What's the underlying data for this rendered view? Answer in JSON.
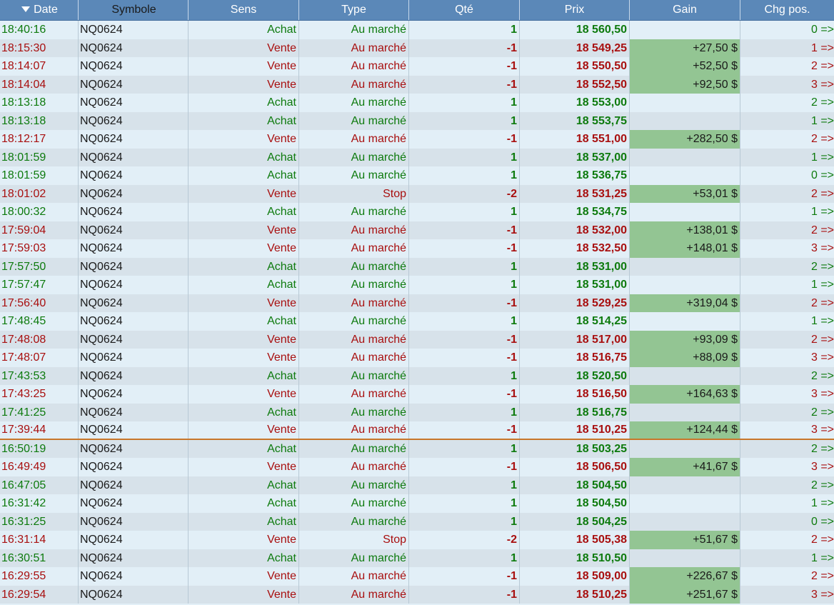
{
  "columns": {
    "date": "Date",
    "symbole": "Symbole",
    "sens": "Sens",
    "type": "Type",
    "qte": "Qté",
    "prix": "Prix",
    "gain": "Gain",
    "chg": "Chg pos."
  },
  "colors": {
    "buy": "#0d7a0d",
    "sell": "#a80f0f",
    "gain_bg": "#93c593",
    "header": "#5b88b8",
    "separator": "#c8762a"
  },
  "rows": [
    {
      "date": "18:40:16",
      "symbol": "NQ0624",
      "sens": "Achat",
      "type": "Au marché",
      "qte": "1",
      "prix": "18 560,50",
      "gain": "",
      "chg": "0 =>"
    },
    {
      "date": "18:15:30",
      "symbol": "NQ0624",
      "sens": "Vente",
      "type": "Au marché",
      "qte": "-1",
      "prix": "18 549,25",
      "gain": "+27,50 $",
      "chg": "1 =>"
    },
    {
      "date": "18:14:07",
      "symbol": "NQ0624",
      "sens": "Vente",
      "type": "Au marché",
      "qte": "-1",
      "prix": "18 550,50",
      "gain": "+52,50 $",
      "chg": "2 =>"
    },
    {
      "date": "18:14:04",
      "symbol": "NQ0624",
      "sens": "Vente",
      "type": "Au marché",
      "qte": "-1",
      "prix": "18 552,50",
      "gain": "+92,50 $",
      "chg": "3 =>"
    },
    {
      "date": "18:13:18",
      "symbol": "NQ0624",
      "sens": "Achat",
      "type": "Au marché",
      "qte": "1",
      "prix": "18 553,00",
      "gain": "",
      "chg": "2 =>"
    },
    {
      "date": "18:13:18",
      "symbol": "NQ0624",
      "sens": "Achat",
      "type": "Au marché",
      "qte": "1",
      "prix": "18 553,75",
      "gain": "",
      "chg": "1 =>"
    },
    {
      "date": "18:12:17",
      "symbol": "NQ0624",
      "sens": "Vente",
      "type": "Au marché",
      "qte": "-1",
      "prix": "18 551,00",
      "gain": "+282,50 $",
      "chg": "2 =>"
    },
    {
      "date": "18:01:59",
      "symbol": "NQ0624",
      "sens": "Achat",
      "type": "Au marché",
      "qte": "1",
      "prix": "18 537,00",
      "gain": "",
      "chg": "1 =>"
    },
    {
      "date": "18:01:59",
      "symbol": "NQ0624",
      "sens": "Achat",
      "type": "Au marché",
      "qte": "1",
      "prix": "18 536,75",
      "gain": "",
      "chg": "0 =>"
    },
    {
      "date": "18:01:02",
      "symbol": "NQ0624",
      "sens": "Vente",
      "type": "Stop",
      "qte": "-2",
      "prix": "18 531,25",
      "gain": "+53,01 $",
      "chg": "2 =>"
    },
    {
      "date": "18:00:32",
      "symbol": "NQ0624",
      "sens": "Achat",
      "type": "Au marché",
      "qte": "1",
      "prix": "18 534,75",
      "gain": "",
      "chg": "1 =>"
    },
    {
      "date": "17:59:04",
      "symbol": "NQ0624",
      "sens": "Vente",
      "type": "Au marché",
      "qte": "-1",
      "prix": "18 532,00",
      "gain": "+138,01 $",
      "chg": "2 =>"
    },
    {
      "date": "17:59:03",
      "symbol": "NQ0624",
      "sens": "Vente",
      "type": "Au marché",
      "qte": "-1",
      "prix": "18 532,50",
      "gain": "+148,01 $",
      "chg": "3 =>"
    },
    {
      "date": "17:57:50",
      "symbol": "NQ0624",
      "sens": "Achat",
      "type": "Au marché",
      "qte": "1",
      "prix": "18 531,00",
      "gain": "",
      "chg": "2 =>"
    },
    {
      "date": "17:57:47",
      "symbol": "NQ0624",
      "sens": "Achat",
      "type": "Au marché",
      "qte": "1",
      "prix": "18 531,00",
      "gain": "",
      "chg": "1 =>"
    },
    {
      "date": "17:56:40",
      "symbol": "NQ0624",
      "sens": "Vente",
      "type": "Au marché",
      "qte": "-1",
      "prix": "18 529,25",
      "gain": "+319,04 $",
      "chg": "2 =>"
    },
    {
      "date": "17:48:45",
      "symbol": "NQ0624",
      "sens": "Achat",
      "type": "Au marché",
      "qte": "1",
      "prix": "18 514,25",
      "gain": "",
      "chg": "1 =>"
    },
    {
      "date": "17:48:08",
      "symbol": "NQ0624",
      "sens": "Vente",
      "type": "Au marché",
      "qte": "-1",
      "prix": "18 517,00",
      "gain": "+93,09 $",
      "chg": "2 =>"
    },
    {
      "date": "17:48:07",
      "symbol": "NQ0624",
      "sens": "Vente",
      "type": "Au marché",
      "qte": "-1",
      "prix": "18 516,75",
      "gain": "+88,09 $",
      "chg": "3 =>"
    },
    {
      "date": "17:43:53",
      "symbol": "NQ0624",
      "sens": "Achat",
      "type": "Au marché",
      "qte": "1",
      "prix": "18 520,50",
      "gain": "",
      "chg": "2 =>"
    },
    {
      "date": "17:43:25",
      "symbol": "NQ0624",
      "sens": "Vente",
      "type": "Au marché",
      "qte": "-1",
      "prix": "18 516,50",
      "gain": "+164,63 $",
      "chg": "3 =>"
    },
    {
      "date": "17:41:25",
      "symbol": "NQ0624",
      "sens": "Achat",
      "type": "Au marché",
      "qte": "1",
      "prix": "18 516,75",
      "gain": "",
      "chg": "2 =>"
    },
    {
      "date": "17:39:44",
      "symbol": "NQ0624",
      "sens": "Vente",
      "type": "Au marché",
      "qte": "-1",
      "prix": "18 510,25",
      "gain": "+124,44 $",
      "chg": "3 =>",
      "separator": true
    },
    {
      "date": "16:50:19",
      "symbol": "NQ0624",
      "sens": "Achat",
      "type": "Au marché",
      "qte": "1",
      "prix": "18 503,25",
      "gain": "",
      "chg": "2 =>"
    },
    {
      "date": "16:49:49",
      "symbol": "NQ0624",
      "sens": "Vente",
      "type": "Au marché",
      "qte": "-1",
      "prix": "18 506,50",
      "gain": "+41,67 $",
      "chg": "3 =>"
    },
    {
      "date": "16:47:05",
      "symbol": "NQ0624",
      "sens": "Achat",
      "type": "Au marché",
      "qte": "1",
      "prix": "18 504,50",
      "gain": "",
      "chg": "2 =>"
    },
    {
      "date": "16:31:42",
      "symbol": "NQ0624",
      "sens": "Achat",
      "type": "Au marché",
      "qte": "1",
      "prix": "18 504,50",
      "gain": "",
      "chg": "1 =>"
    },
    {
      "date": "16:31:25",
      "symbol": "NQ0624",
      "sens": "Achat",
      "type": "Au marché",
      "qte": "1",
      "prix": "18 504,25",
      "gain": "",
      "chg": "0 =>"
    },
    {
      "date": "16:31:14",
      "symbol": "NQ0624",
      "sens": "Vente",
      "type": "Stop",
      "qte": "-2",
      "prix": "18 505,38",
      "gain": "+51,67 $",
      "chg": "2 =>"
    },
    {
      "date": "16:30:51",
      "symbol": "NQ0624",
      "sens": "Achat",
      "type": "Au marché",
      "qte": "1",
      "prix": "18 510,50",
      "gain": "",
      "chg": "1 =>"
    },
    {
      "date": "16:29:55",
      "symbol": "NQ0624",
      "sens": "Vente",
      "type": "Au marché",
      "qte": "-1",
      "prix": "18 509,00",
      "gain": "+226,67 $",
      "chg": "2 =>"
    },
    {
      "date": "16:29:54",
      "symbol": "NQ0624",
      "sens": "Vente",
      "type": "Au marché",
      "qte": "-1",
      "prix": "18 510,25",
      "gain": "+251,67 $",
      "chg": "3 =>"
    }
  ]
}
